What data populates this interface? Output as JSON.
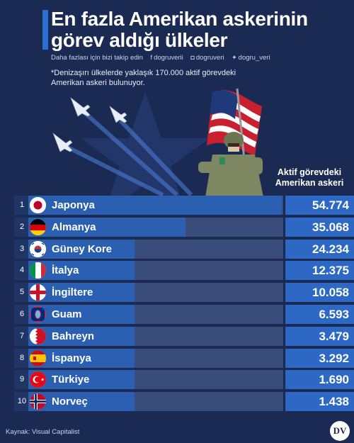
{
  "header": {
    "title_line1": "En fazla Amerikan askerinin",
    "title_line2": "görev aldığı ülkeler",
    "follow_text": "Daha fazlası için bizi takip edin",
    "handles": [
      {
        "icon": "facebook-icon",
        "text": "dogruverii"
      },
      {
        "icon": "instagram-icon",
        "text": "dogruveri"
      },
      {
        "icon": "twitter-icon",
        "text": "dogru_veri"
      }
    ],
    "note": "*Denizaşırı ülkelerde yaklaşık 170.000 aktif görevdeki Amerikan askeri bulunuyor."
  },
  "column_header": [
    "Aktif görevdeki",
    "Amerikan askeri"
  ],
  "chart_data": {
    "type": "bar",
    "orientation": "horizontal",
    "title": "En fazla Amerikan askerinin görev aldığı ülkeler",
    "value_label": "Aktif görevdeki Amerikan askeri",
    "categories": [
      "Japonya",
      "Almanya",
      "Güney Kore",
      "İtalya",
      "İngiltere",
      "Guam",
      "Bahreyn",
      "İspanya",
      "Türkiye",
      "Norveç"
    ],
    "values": [
      54774,
      35068,
      24234,
      12375,
      10058,
      6593,
      3479,
      3292,
      1690,
      1438
    ],
    "value_labels": [
      "54.774",
      "35.068",
      "24.234",
      "12.375",
      "10.058",
      "6.593",
      "3.479",
      "3.292",
      "1.690",
      "1.438"
    ],
    "ranks": [
      "1",
      "2",
      "3",
      "4",
      "5",
      "6",
      "7",
      "8",
      "9",
      "10"
    ],
    "flags": [
      "japan-flag-icon",
      "germany-flag-icon",
      "south-korea-flag-icon",
      "italy-flag-icon",
      "england-flag-icon",
      "guam-flag-icon",
      "bahrain-flag-icon",
      "spain-flag-icon",
      "turkey-flag-icon",
      "norway-flag-icon"
    ]
  },
  "footer": {
    "source": "Kaynak: Visual Capitalist",
    "logo_text": "DV"
  },
  "colors": {
    "background": "#1a2a52",
    "bar": "#2a5fb2",
    "track": "#3a4d7a",
    "value_box": "#2c68c4"
  }
}
